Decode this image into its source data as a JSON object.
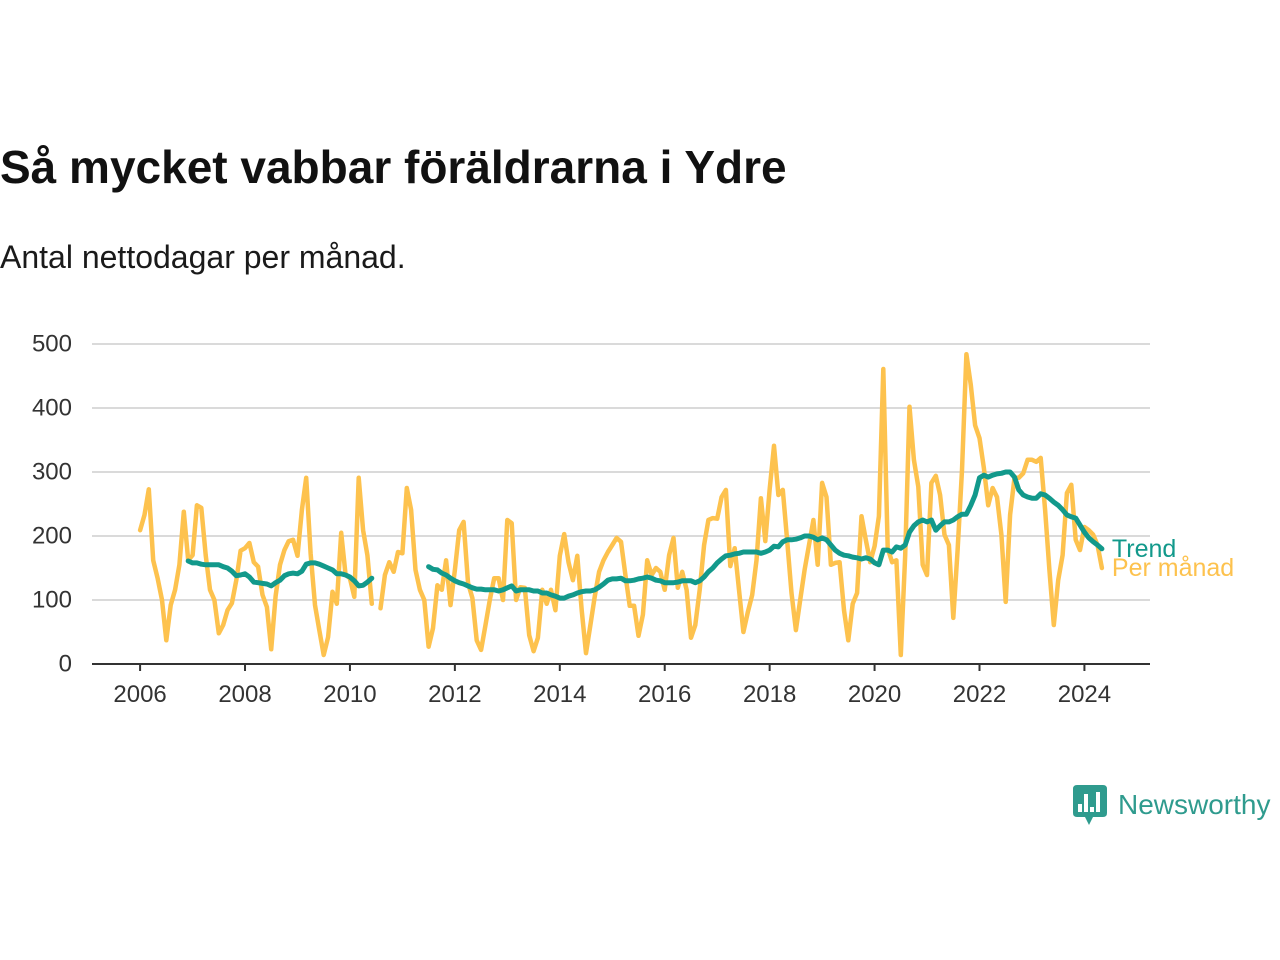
{
  "chart_data": {
    "type": "line",
    "title": "Så mycket vabbar föräldrarna i Ydre",
    "subtitle": "Antal nettodagar per månad.",
    "x": [
      "2006-01",
      "2006-02",
      "2006-03",
      "2006-04",
      "2006-05",
      "2006-06",
      "2006-07",
      "2006-08",
      "2006-09",
      "2006-10",
      "2006-11",
      "2006-12",
      "2007-01",
      "2007-02",
      "2007-03",
      "2007-04",
      "2007-05",
      "2007-06",
      "2007-07",
      "2007-08",
      "2007-09",
      "2007-10",
      "2007-11",
      "2007-12",
      "2008-01",
      "2008-02",
      "2008-03",
      "2008-04",
      "2008-05",
      "2008-06",
      "2008-07",
      "2008-08",
      "2008-09",
      "2008-10",
      "2008-11",
      "2008-12",
      "2009-01",
      "2009-02",
      "2009-03",
      "2009-04",
      "2009-05",
      "2009-06",
      "2009-07",
      "2009-08",
      "2009-09",
      "2009-10",
      "2009-11",
      "2009-12",
      "2010-01",
      "2010-02",
      "2010-03",
      "2010-04",
      "2010-05",
      "2010-06",
      "2010-07",
      "2010-08",
      "2010-09",
      "2010-10",
      "2010-11",
      "2010-12",
      "2011-01",
      "2011-02",
      "2011-03",
      "2011-04",
      "2011-05",
      "2011-06",
      "2011-07",
      "2011-08",
      "2011-09",
      "2011-10",
      "2011-11",
      "2011-12",
      "2012-01",
      "2012-02",
      "2012-03",
      "2012-04",
      "2012-05",
      "2012-06",
      "2012-07",
      "2012-08",
      "2012-09",
      "2012-10",
      "2012-11",
      "2012-12",
      "2013-01",
      "2013-02",
      "2013-03",
      "2013-04",
      "2013-05",
      "2013-06",
      "2013-07",
      "2013-08",
      "2013-09",
      "2013-10",
      "2013-11",
      "2013-12",
      "2014-01",
      "2014-02",
      "2014-03",
      "2014-04",
      "2014-05",
      "2014-06",
      "2014-07",
      "2014-08",
      "2014-09",
      "2014-10",
      "2014-11",
      "2014-12",
      "2015-01",
      "2015-02",
      "2015-03",
      "2015-04",
      "2015-05",
      "2015-06",
      "2015-07",
      "2015-08",
      "2015-09",
      "2015-10",
      "2015-11",
      "2015-12",
      "2016-01",
      "2016-02",
      "2016-03",
      "2016-04",
      "2016-05",
      "2016-06",
      "2016-07",
      "2016-08",
      "2016-09",
      "2016-10",
      "2016-11",
      "2016-12",
      "2017-01",
      "2017-02",
      "2017-03",
      "2017-04",
      "2017-05",
      "2017-06",
      "2017-07",
      "2017-08",
      "2017-09",
      "2017-10",
      "2017-11",
      "2017-12",
      "2018-01",
      "2018-02",
      "2018-03",
      "2018-04",
      "2018-05",
      "2018-06",
      "2018-07",
      "2018-08",
      "2018-09",
      "2018-10",
      "2018-11",
      "2018-12",
      "2019-01",
      "2019-02",
      "2019-03",
      "2019-04",
      "2019-05",
      "2019-06",
      "2019-07",
      "2019-08",
      "2019-09",
      "2019-10",
      "2019-11",
      "2019-12",
      "2020-01",
      "2020-02",
      "2020-03",
      "2020-04",
      "2020-05",
      "2020-06",
      "2020-07",
      "2020-08",
      "2020-09",
      "2020-10",
      "2020-11",
      "2020-12",
      "2021-01",
      "2021-02",
      "2021-03",
      "2021-04",
      "2021-05",
      "2021-06",
      "2021-07",
      "2021-08",
      "2021-09",
      "2021-10",
      "2021-11",
      "2021-12",
      "2022-01",
      "2022-02",
      "2022-03",
      "2022-04",
      "2022-05",
      "2022-06",
      "2022-07",
      "2022-08",
      "2022-09",
      "2022-10",
      "2022-11",
      "2022-12",
      "2023-01",
      "2023-02",
      "2023-03",
      "2023-04",
      "2023-05",
      "2023-06",
      "2023-07",
      "2023-08",
      "2023-09",
      "2023-10",
      "2023-11",
      "2023-12",
      "2024-01",
      "2024-02",
      "2024-03",
      "2024-04",
      "2024-05"
    ],
    "series": [
      {
        "name": "Per månad",
        "color": "#fdc24e",
        "values": [
          209,
          233,
          273,
          162,
          134,
          100,
          37,
          92,
          116,
          155,
          238,
          162,
          170,
          248,
          244,
          170,
          116,
          100,
          48,
          61,
          84,
          95,
          131,
          177,
          181,
          189,
          159,
          152,
          108,
          89,
          23,
          106,
          155,
          178,
          192,
          194,
          169,
          241,
          291,
          173,
          92,
          53,
          14,
          42,
          113,
          94,
          205,
          139,
          134,
          105,
          291,
          209,
          170,
          94,
          null,
          87,
          139,
          159,
          144,
          175,
          173,
          275,
          241,
          147,
          116,
          100,
          27,
          56,
          123,
          116,
          162,
          92,
          147,
          209,
          222,
          127,
          103,
          37,
          22,
          61,
          100,
          134,
          134,
          100,
          225,
          220,
          100,
          120,
          119,
          45,
          20,
          41,
          116,
          94,
          116,
          84,
          169,
          203,
          159,
          131,
          169,
          84,
          17,
          61,
          106,
          144,
          162,
          175,
          186,
          197,
          191,
          139,
          91,
          91,
          44,
          77,
          162,
          139,
          150,
          144,
          116,
          170,
          197,
          119,
          144,
          116,
          41,
          61,
          116,
          186,
          225,
          228,
          227,
          261,
          272,
          153,
          181,
          116,
          50,
          81,
          108,
          162,
          259,
          192,
          272,
          341,
          264,
          272,
          194,
          111,
          53,
          100,
          147,
          186,
          225,
          155,
          283,
          261,
          155,
          158,
          159,
          84,
          37,
          94,
          111,
          231,
          194,
          159,
          184,
          231,
          461,
          181,
          159,
          162,
          14,
          170,
          402,
          319,
          277,
          155,
          139,
          283,
          294,
          264,
          202,
          186,
          72,
          178,
          303,
          484,
          436,
          373,
          353,
          306,
          248,
          275,
          261,
          202,
          97,
          233,
          291,
          291,
          298,
          319,
          319,
          316,
          322,
          241,
          147,
          61,
          131,
          170,
          267,
          280,
          194,
          178,
          214,
          209,
          202,
          186,
          150
        ]
      },
      {
        "name": "Trend",
        "color": "#12998b",
        "values": [
          null,
          null,
          null,
          null,
          null,
          null,
          null,
          null,
          null,
          null,
          null,
          161,
          158,
          158,
          156,
          155,
          155,
          155,
          155,
          152,
          150,
          145,
          138,
          139,
          141,
          136,
          128,
          127,
          126,
          125,
          122,
          127,
          131,
          138,
          141,
          142,
          141,
          145,
          156,
          158,
          158,
          156,
          153,
          150,
          147,
          141,
          141,
          139,
          136,
          130,
          122,
          123,
          128,
          134,
          null,
          null,
          null,
          null,
          null,
          null,
          null,
          null,
          null,
          null,
          null,
          null,
          152,
          148,
          147,
          142,
          139,
          134,
          130,
          127,
          125,
          122,
          119,
          117,
          117,
          116,
          116,
          116,
          114,
          116,
          119,
          122,
          114,
          116,
          116,
          116,
          114,
          114,
          111,
          111,
          108,
          106,
          103,
          103,
          106,
          108,
          111,
          113,
          114,
          114,
          116,
          120,
          125,
          131,
          133,
          133,
          134,
          130,
          130,
          131,
          133,
          134,
          136,
          134,
          131,
          130,
          127,
          127,
          127,
          128,
          130,
          130,
          130,
          127,
          130,
          136,
          144,
          150,
          158,
          164,
          169,
          170,
          172,
          173,
          175,
          175,
          175,
          175,
          173,
          175,
          178,
          184,
          183,
          191,
          194,
          194,
          195,
          197,
          200,
          200,
          198,
          194,
          197,
          194,
          186,
          178,
          173,
          170,
          169,
          167,
          166,
          164,
          166,
          164,
          158,
          155,
          178,
          178,
          175,
          183,
          181,
          186,
          206,
          216,
          222,
          225,
          222,
          225,
          209,
          216,
          222,
          222,
          225,
          230,
          234,
          234,
          248,
          264,
          291,
          295,
          292,
          295,
          297,
          298,
          300,
          300,
          292,
          272,
          264,
          261,
          259,
          259,
          266,
          264,
          259,
          253,
          248,
          241,
          233,
          230,
          228,
          217,
          206,
          197,
          191,
          186,
          180
        ]
      }
    ],
    "x_ticks": [
      "2006",
      "2008",
      "2010",
      "2012",
      "2014",
      "2016",
      "2018",
      "2020",
      "2022",
      "2024"
    ],
    "y_ticks": [
      0,
      100,
      200,
      300,
      400,
      500
    ],
    "xlim": [
      "2005-02",
      "2025-04"
    ],
    "ylim": [
      0,
      500
    ],
    "grid": true,
    "legend": "right"
  },
  "logo": {
    "text": "Newsworthy",
    "icon": "newsworthy-logo-icon",
    "color": "#2f9b8e"
  }
}
